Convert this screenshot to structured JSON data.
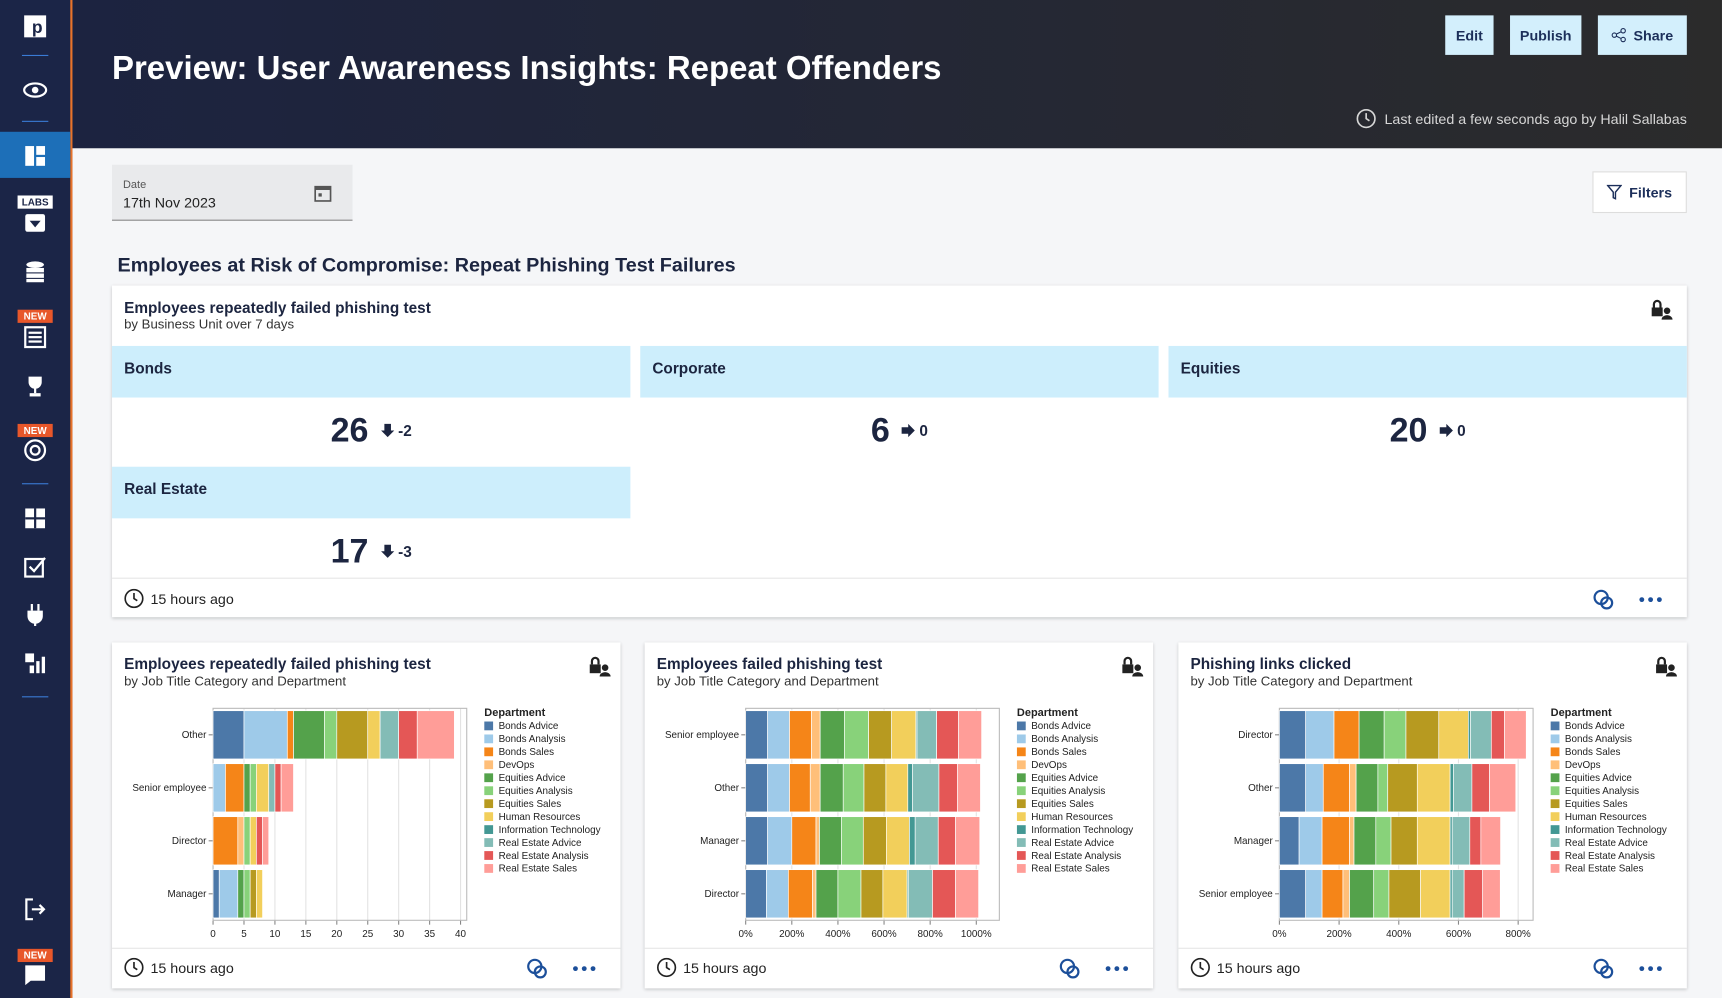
{
  "sidebar": {
    "labs": "LABS",
    "new_badges": [
      "NEW",
      "NEW",
      "NEW"
    ]
  },
  "header": {
    "title": "Preview: User Awareness Insights: Repeat Offenders",
    "buttons": [
      "Edit",
      "Publish",
      "Share"
    ],
    "last_edited": "Last edited a few seconds ago by Halil Sallabas"
  },
  "date_field": {
    "label": "Date",
    "value": "17th Nov 2023"
  },
  "filters": "Filters",
  "section_title": "Employees at Risk of Compromise: Repeat Phishing Test Failures",
  "kpi": {
    "title": "Employees repeatedly failed phishing test",
    "subtitle": "by Business Unit over 7 days",
    "footer": "15 hours ago",
    "tiles": [
      {
        "name": "Bonds",
        "value": 26,
        "delta": -2
      },
      {
        "name": "Corporate",
        "value": 6,
        "delta": 0
      },
      {
        "name": "Equities",
        "value": 20,
        "delta": 0
      },
      {
        "name": "Real Estate",
        "value": 17,
        "delta": -3
      }
    ]
  },
  "chart_data": [
    {
      "type": "stacked_bar_horizontal",
      "title": "Employees repeatedly failed phishing test",
      "subtitle": "by Job Title Category and Department",
      "footer": "15 hours ago",
      "legend_title": "Department",
      "legend": "right",
      "grid": true,
      "categories": [
        "Other",
        "Senior employee",
        "Director",
        "Manager"
      ],
      "xlim": [
        0,
        41
      ],
      "xticks": [
        0,
        5,
        10,
        15,
        20,
        25,
        30,
        35,
        40
      ],
      "series": [
        {
          "name": "Bonds Advice",
          "color": "#4c78a8",
          "values": [
            5,
            0,
            0,
            1
          ]
        },
        {
          "name": "Bonds Analysis",
          "color": "#9ecae9",
          "values": [
            7,
            2,
            0,
            3
          ]
        },
        {
          "name": "Bonds Sales",
          "color": "#f58518",
          "values": [
            1,
            3,
            4,
            0
          ]
        },
        {
          "name": "DevOps",
          "color": "#ffbf79",
          "values": [
            0,
            0,
            1,
            0
          ]
        },
        {
          "name": "Equities Advice",
          "color": "#54a24b",
          "values": [
            5,
            1,
            0,
            1
          ]
        },
        {
          "name": "Equities Analysis",
          "color": "#88d27a",
          "values": [
            2,
            1,
            1,
            1
          ]
        },
        {
          "name": "Equities Sales",
          "color": "#b79a20",
          "values": [
            5,
            0,
            0,
            1
          ]
        },
        {
          "name": "Human Resources",
          "color": "#f2cf5b",
          "values": [
            2,
            2,
            1,
            1
          ]
        },
        {
          "name": "Information Technology",
          "color": "#439894",
          "values": [
            0,
            0,
            0,
            0
          ]
        },
        {
          "name": "Real Estate Advice",
          "color": "#83bcb6",
          "values": [
            3,
            1,
            0,
            0
          ]
        },
        {
          "name": "Real Estate Analysis",
          "color": "#e45756",
          "values": [
            3,
            1,
            1,
            0
          ]
        },
        {
          "name": "Real Estate Sales",
          "color": "#ff9d98",
          "values": [
            6,
            2,
            1,
            0
          ]
        }
      ]
    },
    {
      "type": "stacked_bar_horizontal",
      "title": "Employees failed phishing test",
      "subtitle": "by Job Title Category and Department",
      "footer": "15 hours ago",
      "legend_title": "Department",
      "legend": "right",
      "grid": true,
      "categories": [
        "Senior employee",
        "Other",
        "Manager",
        "Director"
      ],
      "xlim": [
        0,
        1100
      ],
      "xticks": [
        {
          "value": 0,
          "label": "0%"
        },
        {
          "value": 200,
          "label": "200%"
        },
        {
          "value": 400,
          "label": "400%"
        },
        {
          "value": 600,
          "label": "600%"
        },
        {
          "value": 800,
          "label": "800%"
        },
        {
          "value": 1000,
          "label": "1000%"
        }
      ],
      "series": [
        {
          "name": "Bonds Advice",
          "color": "#4c78a8",
          "values": [
            95,
            95,
            95,
            90
          ]
        },
        {
          "name": "Bonds Analysis",
          "color": "#9ecae9",
          "values": [
            95,
            95,
            105,
            95
          ]
        },
        {
          "name": "Bonds Sales",
          "color": "#f58518",
          "values": [
            95,
            90,
            105,
            105
          ]
        },
        {
          "name": "DevOps",
          "color": "#ffbf79",
          "values": [
            38,
            43,
            15,
            15
          ]
        },
        {
          "name": "Equities Advice",
          "color": "#54a24b",
          "values": [
            105,
            100,
            95,
            95
          ]
        },
        {
          "name": "Equities Analysis",
          "color": "#88d27a",
          "values": [
            105,
            90,
            95,
            100
          ]
        },
        {
          "name": "Equities Sales",
          "color": "#b79a20",
          "values": [
            100,
            95,
            100,
            95
          ]
        },
        {
          "name": "Human Resources",
          "color": "#f2cf5b",
          "values": [
            105,
            95,
            100,
            105
          ]
        },
        {
          "name": "Information Technology",
          "color": "#439894",
          "values": [
            5,
            20,
            25,
            5
          ]
        },
        {
          "name": "Real Estate Advice",
          "color": "#83bcb6",
          "values": [
            85,
            115,
            100,
            105
          ]
        },
        {
          "name": "Real Estate Analysis",
          "color": "#e45756",
          "values": [
            95,
            80,
            75,
            100
          ]
        },
        {
          "name": "Real Estate Sales",
          "color": "#ff9d98",
          "values": [
            100,
            100,
            105,
            100
          ]
        }
      ]
    },
    {
      "type": "stacked_bar_horizontal",
      "title": "Phishing links clicked",
      "subtitle": "by Job Title Category and Department",
      "footer": "15 hours ago",
      "legend_title": "Department",
      "legend": "right",
      "grid": true,
      "categories": [
        "Director",
        "Other",
        "Manager",
        "Senior employee"
      ],
      "xlim": [
        0,
        850
      ],
      "xticks": [
        {
          "value": 0,
          "label": "0%"
        },
        {
          "value": 200,
          "label": "200%"
        },
        {
          "value": 400,
          "label": "400%"
        },
        {
          "value": 600,
          "label": "600%"
        },
        {
          "value": 800,
          "label": "800%"
        }
      ],
      "series": [
        {
          "name": "Bonds Advice",
          "color": "#4c78a8",
          "values": [
            88,
            88,
            66,
            88
          ]
        },
        {
          "name": "Bonds Analysis",
          "color": "#9ecae9",
          "values": [
            95,
            59,
            77,
            55
          ]
        },
        {
          "name": "Bonds Sales",
          "color": "#f58518",
          "values": [
            84,
            88,
            92,
            70
          ]
        },
        {
          "name": "DevOps",
          "color": "#ffbf79",
          "values": [
            0,
            22,
            15,
            22
          ]
        },
        {
          "name": "Equities Advice",
          "color": "#54a24b",
          "values": [
            84,
            73,
            73,
            81
          ]
        },
        {
          "name": "Equities Analysis",
          "color": "#88d27a",
          "values": [
            73,
            33,
            51,
            51
          ]
        },
        {
          "name": "Equities Sales",
          "color": "#b79a20",
          "values": [
            110,
            99,
            88,
            106
          ]
        },
        {
          "name": "Human Resources",
          "color": "#f2cf5b",
          "values": [
            99,
            110,
            110,
            99
          ]
        },
        {
          "name": "Information Technology",
          "color": "#439894",
          "values": [
            7,
            11,
            7,
            7
          ]
        },
        {
          "name": "Real Estate Advice",
          "color": "#83bcb6",
          "values": [
            70,
            62,
            59,
            40
          ]
        },
        {
          "name": "Real Estate Analysis",
          "color": "#e45756",
          "values": [
            44,
            59,
            37,
            62
          ]
        },
        {
          "name": "Real Estate Sales",
          "color": "#ff9d98",
          "values": [
            73,
            88,
            66,
            59
          ]
        }
      ]
    }
  ]
}
